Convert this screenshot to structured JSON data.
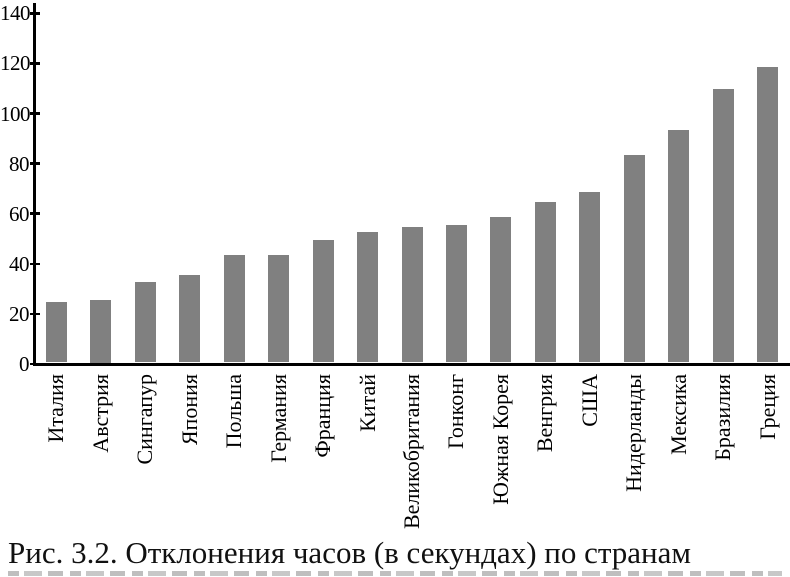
{
  "chart_data": {
    "type": "bar",
    "title": "",
    "xlabel": "",
    "ylabel": "",
    "categories": [
      "Италия",
      "Австрия",
      "Сингапур",
      "Япония",
      "Польша",
      "Германия",
      "Франция",
      "Китай",
      "Великобритания",
      "Гонконг",
      "Южная Корея",
      "Венгрия",
      "США",
      "Нидерланды",
      "Мексика",
      "Бразилия",
      "Греция"
    ],
    "values": [
      24,
      25,
      32,
      35,
      43,
      43,
      49,
      52,
      54,
      55,
      58,
      64,
      68,
      83,
      93,
      109,
      118
    ],
    "ylim": [
      0,
      140
    ],
    "yticks": [
      0,
      20,
      40,
      60,
      80,
      100,
      120,
      140
    ],
    "grid": false,
    "legend": "none",
    "bar_color": "#808080",
    "axis_color": "#000000",
    "x_tick_label_rotation": 90
  },
  "caption": {
    "text": "Рис. 3.2. Отклонения часов (в секундах) по странам"
  }
}
